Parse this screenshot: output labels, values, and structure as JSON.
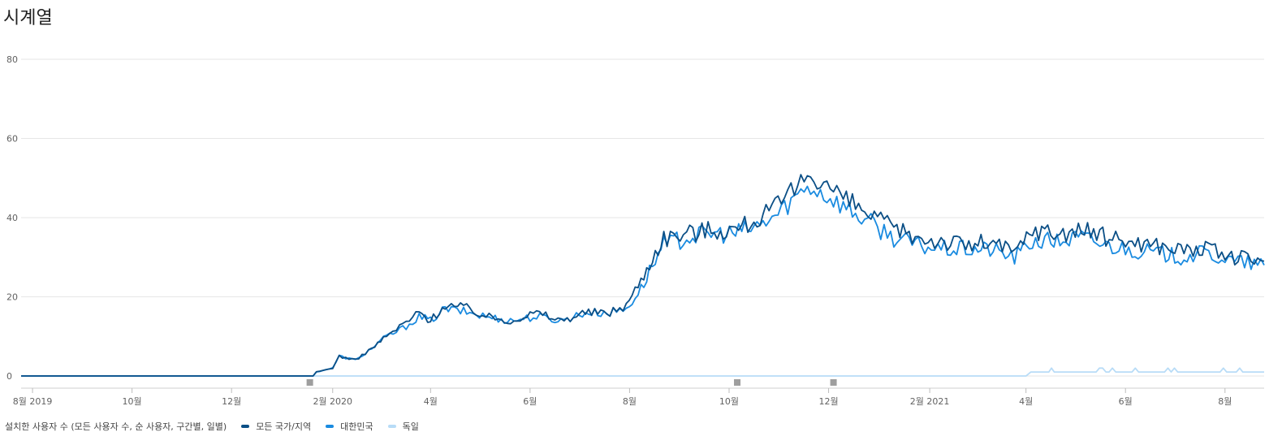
{
  "title": "시계열",
  "legend_prefix": "설치한 사용자 수 (모든 사용자 수, 순 사용자, 구간별, 일별)",
  "chart_data": {
    "type": "line",
    "title": "시계열",
    "ylim": [
      0,
      80
    ],
    "y_ticks": [
      0,
      20,
      40,
      60,
      80
    ],
    "x_range": [
      "2019-07-25",
      "2021-08-25"
    ],
    "x_ticks": [
      {
        "date": "2019-08-01",
        "label": "8월 2019"
      },
      {
        "date": "2019-10-01",
        "label": "10월"
      },
      {
        "date": "2019-12-01",
        "label": "12월"
      },
      {
        "date": "2020-02-01",
        "label": "2월 2020"
      },
      {
        "date": "2020-04-01",
        "label": "4월"
      },
      {
        "date": "2020-06-01",
        "label": "6월"
      },
      {
        "date": "2020-08-01",
        "label": "8월"
      },
      {
        "date": "2020-10-01",
        "label": "10월"
      },
      {
        "date": "2020-12-01",
        "label": "12월"
      },
      {
        "date": "2021-02-01",
        "label": "2월 2021"
      },
      {
        "date": "2021-04-01",
        "label": "4월"
      },
      {
        "date": "2021-06-01",
        "label": "6월"
      },
      {
        "date": "2021-08-01",
        "label": "8월"
      }
    ],
    "grid": true,
    "legend_position": "bottom",
    "annotation_markers": [
      "2020-01-18",
      "2020-10-06",
      "2020-12-04"
    ],
    "series": [
      {
        "name": "모든 국가/지역",
        "color": "#0b4f86",
        "points": [
          [
            "2019-07-25",
            0
          ],
          [
            "2020-01-20",
            0
          ],
          [
            "2020-01-22",
            1
          ],
          [
            "2020-02-01",
            2
          ],
          [
            "2020-02-05",
            5
          ],
          [
            "2020-02-15",
            4
          ],
          [
            "2020-02-25",
            7
          ],
          [
            "2020-03-05",
            10
          ],
          [
            "2020-03-15",
            13
          ],
          [
            "2020-03-25",
            16
          ],
          [
            "2020-04-01",
            14
          ],
          [
            "2020-04-10",
            18
          ],
          [
            "2020-04-25",
            17
          ],
          [
            "2020-05-05",
            15
          ],
          [
            "2020-05-20",
            14
          ],
          [
            "2020-06-05",
            16
          ],
          [
            "2020-06-20",
            14
          ],
          [
            "2020-07-05",
            16
          ],
          [
            "2020-07-20",
            16
          ],
          [
            "2020-07-30",
            18
          ],
          [
            "2020-08-08",
            24
          ],
          [
            "2020-08-15",
            30
          ],
          [
            "2020-08-22",
            35
          ],
          [
            "2020-09-05",
            36
          ],
          [
            "2020-09-20",
            37
          ],
          [
            "2020-10-05",
            37
          ],
          [
            "2020-10-20",
            40
          ],
          [
            "2020-10-31",
            43
          ],
          [
            "2020-11-10",
            47
          ],
          [
            "2020-11-18",
            51
          ],
          [
            "2020-11-28",
            49
          ],
          [
            "2020-12-10",
            45
          ],
          [
            "2020-12-25",
            41
          ],
          [
            "2021-01-10",
            37
          ],
          [
            "2021-01-25",
            35
          ],
          [
            "2021-02-10",
            34
          ],
          [
            "2021-02-25",
            33
          ],
          [
            "2021-03-10",
            34
          ],
          [
            "2021-03-25",
            31
          ],
          [
            "2021-04-05",
            37
          ],
          [
            "2021-04-20",
            36
          ],
          [
            "2021-05-05",
            37
          ],
          [
            "2021-05-20",
            35
          ],
          [
            "2021-06-05",
            34
          ],
          [
            "2021-06-20",
            33
          ],
          [
            "2021-07-05",
            32
          ],
          [
            "2021-07-20",
            32
          ],
          [
            "2021-08-05",
            30
          ],
          [
            "2021-08-25",
            29
          ]
        ]
      },
      {
        "name": "대한민국",
        "color": "#1a8be0",
        "points": [
          [
            "2019-07-25",
            0
          ],
          [
            "2020-01-20",
            0
          ],
          [
            "2020-01-22",
            1
          ],
          [
            "2020-02-01",
            2
          ],
          [
            "2020-02-05",
            5
          ],
          [
            "2020-02-15",
            4
          ],
          [
            "2020-02-25",
            7
          ],
          [
            "2020-03-05",
            10
          ],
          [
            "2020-03-15",
            12
          ],
          [
            "2020-03-25",
            15
          ],
          [
            "2020-04-01",
            14
          ],
          [
            "2020-04-10",
            17
          ],
          [
            "2020-04-25",
            16
          ],
          [
            "2020-05-05",
            15
          ],
          [
            "2020-05-20",
            14
          ],
          [
            "2020-06-05",
            15
          ],
          [
            "2020-06-20",
            14
          ],
          [
            "2020-07-05",
            16
          ],
          [
            "2020-07-20",
            16
          ],
          [
            "2020-07-30",
            17
          ],
          [
            "2020-08-08",
            22
          ],
          [
            "2020-08-15",
            28
          ],
          [
            "2020-08-22",
            33
          ],
          [
            "2020-09-05",
            35
          ],
          [
            "2020-09-20",
            36
          ],
          [
            "2020-10-05",
            36
          ],
          [
            "2020-10-20",
            38
          ],
          [
            "2020-10-31",
            41
          ],
          [
            "2020-11-10",
            45
          ],
          [
            "2020-11-18",
            48
          ],
          [
            "2020-11-28",
            46
          ],
          [
            "2020-12-10",
            43
          ],
          [
            "2020-12-25",
            39
          ],
          [
            "2021-01-10",
            35
          ],
          [
            "2021-01-25",
            33
          ],
          [
            "2021-02-10",
            32
          ],
          [
            "2021-02-25",
            32
          ],
          [
            "2021-03-10",
            32
          ],
          [
            "2021-03-25",
            30
          ],
          [
            "2021-04-05",
            34
          ],
          [
            "2021-04-20",
            34
          ],
          [
            "2021-05-05",
            35
          ],
          [
            "2021-05-20",
            33
          ],
          [
            "2021-06-05",
            32
          ],
          [
            "2021-06-20",
            31
          ],
          [
            "2021-07-05",
            30
          ],
          [
            "2021-07-20",
            31
          ],
          [
            "2021-08-05",
            29
          ],
          [
            "2021-08-25",
            28
          ]
        ]
      },
      {
        "name": "독일",
        "color": "#b8dcf7",
        "points": [
          [
            "2019-07-25",
            0
          ],
          [
            "2021-04-01",
            0
          ],
          [
            "2021-04-04",
            1
          ],
          [
            "2021-04-15",
            1
          ],
          [
            "2021-04-20",
            1
          ],
          [
            "2021-05-10",
            1
          ],
          [
            "2021-06-01",
            1
          ],
          [
            "2021-07-01",
            1
          ],
          [
            "2021-08-10",
            1
          ],
          [
            "2021-08-25",
            1
          ]
        ]
      }
    ]
  }
}
